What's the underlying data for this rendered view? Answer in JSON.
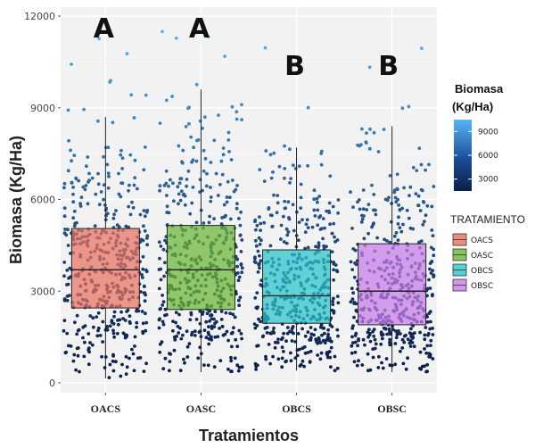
{
  "chart_data": {
    "type": "boxplot",
    "title": "",
    "xlabel": "Tratamientos",
    "ylabel": "Biomasa (Kg/Ha)",
    "ylim": [
      0,
      12000
    ],
    "yticks": [
      0,
      3000,
      6000,
      9000,
      12000
    ],
    "yticklabels": [
      "0",
      "3000",
      "6000",
      "9000",
      "12000"
    ],
    "categories": [
      "OACS",
      "OASC",
      "OBCS",
      "OBSC"
    ],
    "boxes": [
      {
        "name": "OACS",
        "whisker_low": 150,
        "q1": 2450,
        "median": 3700,
        "q3": 5050,
        "whisker_high": 8700,
        "color": "#E8715F",
        "letter": "A"
      },
      {
        "name": "OASC",
        "whisker_low": 350,
        "q1": 2400,
        "median": 3700,
        "q3": 5150,
        "whisker_high": 9600,
        "color": "#6BB434",
        "letter": "A"
      },
      {
        "name": "OBCS",
        "whisker_low": 400,
        "q1": 1950,
        "median": 2850,
        "q3": 4350,
        "whisker_high": 7700,
        "color": "#28C3CB",
        "letter": "B"
      },
      {
        "name": "OBSC",
        "whisker_low": 350,
        "q1": 1900,
        "median": 3000,
        "q3": 4550,
        "whisker_high": 8400,
        "color": "#C77CE8",
        "letter": "B"
      }
    ],
    "point_color_scale": {
      "title_line1": "Biomasa",
      "title_line2": "(Kg/Ha)",
      "ticks": [
        "9000",
        "6000",
        "3000"
      ],
      "tick_values": [
        9000,
        6000,
        3000
      ],
      "range": [
        0,
        12000
      ],
      "low_color": "#0b1f4a",
      "high_color": "#56b7f5"
    },
    "legend": {
      "title": "TRATAMIENTO",
      "entries": [
        "OACS",
        "OASC",
        "OBCS",
        "OBSC"
      ],
      "placement": "right"
    },
    "grid": true
  }
}
